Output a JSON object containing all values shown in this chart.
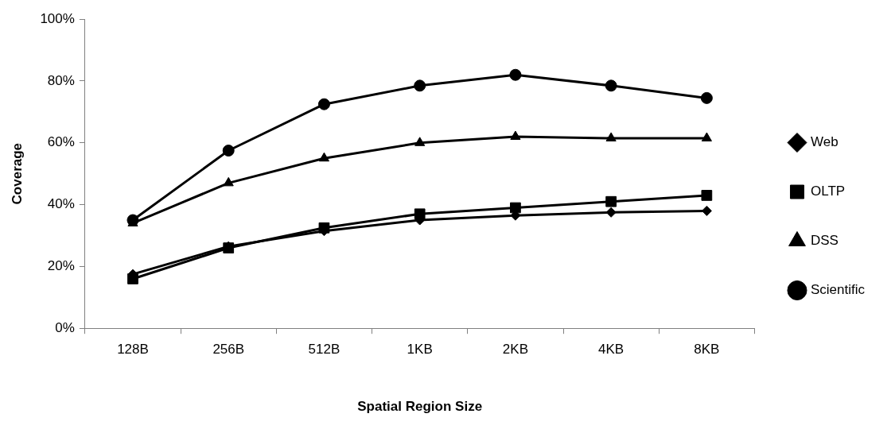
{
  "chart_data": {
    "type": "line",
    "xlabel": "Spatial Region Size",
    "ylabel": "Coverage",
    "categories": [
      "128B",
      "256B",
      "512B",
      "1KB",
      "2KB",
      "4KB",
      "8KB"
    ],
    "series": [
      {
        "name": "Web",
        "color": "#000000",
        "marker": "diamond",
        "values": [
          17.5,
          26.5,
          31.5,
          35,
          36.5,
          37.5,
          38
        ]
      },
      {
        "name": "OLTP",
        "color": "#000000",
        "marker": "square",
        "values": [
          16,
          26,
          32.5,
          37,
          39,
          41,
          43
        ]
      },
      {
        "name": "DSS",
        "color": "#000000",
        "marker": "triangle",
        "values": [
          34,
          47,
          55,
          60,
          62,
          61.5,
          61.5
        ]
      },
      {
        "name": "Scientific",
        "color": "#000000",
        "marker": "circle",
        "values": [
          35,
          57.5,
          72.5,
          78.5,
          82,
          78.5,
          74.5
        ]
      }
    ],
    "ylim": [
      0,
      100
    ],
    "yticks": [
      {
        "value": 0,
        "label": "0%"
      },
      {
        "value": 20,
        "label": "20%"
      },
      {
        "value": 40,
        "label": "40%"
      },
      {
        "value": 60,
        "label": "60%"
      },
      {
        "value": 80,
        "label": "80%"
      },
      {
        "value": 100,
        "label": "100%"
      }
    ],
    "grid": false,
    "legend": "right",
    "line_style": "solid"
  }
}
